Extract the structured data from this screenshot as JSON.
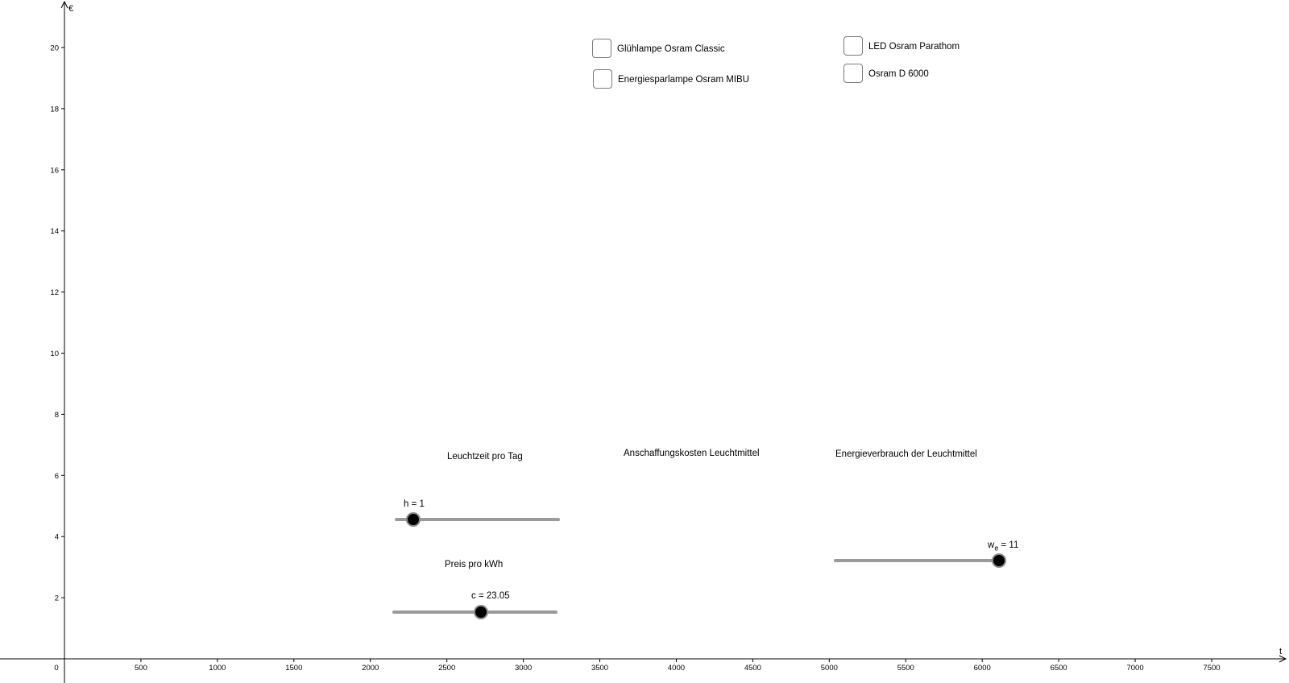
{
  "axes": {
    "x_label": "t",
    "y_label": "€",
    "x_ticks": [
      0,
      500,
      1000,
      1500,
      2000,
      2500,
      3000,
      3500,
      4000,
      4500,
      5000,
      5500,
      6000,
      6500,
      7000,
      7500
    ],
    "y_ticks": [
      2,
      4,
      6,
      8,
      10,
      12,
      14,
      16,
      18,
      20
    ],
    "x_range": [
      -210,
      8000
    ],
    "y_range": [
      0,
      21.5
    ],
    "axis_color": "#000000"
  },
  "checkboxes": [
    {
      "label": "Glühlampe Osram Classic",
      "checked": false
    },
    {
      "label": "Energiesparlampe Osram MIBU",
      "checked": false
    },
    {
      "label": "LED Osram Parathom",
      "checked": false
    },
    {
      "label": "Osram D 6000",
      "checked": false
    }
  ],
  "section_labels": {
    "leuchtzeit": "Leuchtzeit pro Tag",
    "anschaffung": "Anschaffungskosten Leuchtmittel",
    "energie": "Energieverbrauch der Leuchtmittel",
    "preis": "Preis pro kWh"
  },
  "sliders": {
    "h": {
      "name": "h",
      "value": "1",
      "text": "h = 1",
      "fraction": 0.11
    },
    "c": {
      "name": "c",
      "value": "23.05",
      "text": "c = 23.05",
      "fraction": 0.535
    },
    "we": {
      "name": "w",
      "subscript": "e",
      "value": "11",
      "text": " = 11",
      "fraction": 0.975
    }
  },
  "colors": {
    "slider_track": "#9a9a9a",
    "slider_knob": "#000000",
    "checkbox_border": "#7a7a7a"
  }
}
